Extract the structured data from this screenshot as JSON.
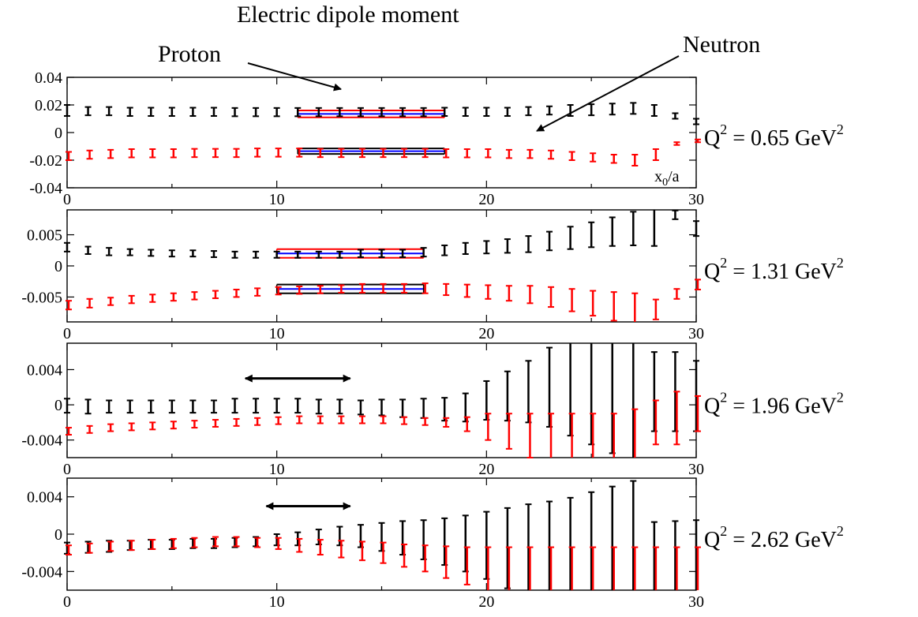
{
  "title": "Electric dipole moment",
  "annotations": {
    "proton": "Proton",
    "neutron": "Neutron"
  },
  "colors": {
    "neutron": "#000000",
    "proton": "#ff0000",
    "fit_band_center": "#0000ff"
  },
  "chart_data": [
    {
      "type": "scatter",
      "q2_label": {
        "base": "Q",
        "exp": "2",
        "mid": " = 0.65 GeV",
        "unit_exp": "2"
      },
      "xlabel": "x",
      "xlabel_sub": "0",
      "xlabel_tail": "/a",
      "xlim": [
        0,
        30
      ],
      "ylim": [
        -0.04,
        0.04
      ],
      "x_ticks": [
        "0",
        "10",
        "20",
        "30"
      ],
      "y_ticks": [
        {
          "v": 0.04,
          "t": "0.04"
        },
        {
          "v": 0.02,
          "t": "0.02"
        },
        {
          "v": 0,
          "t": "0"
        },
        {
          "v": -0.02,
          "t": "-0.02"
        },
        {
          "v": -0.04,
          "t": "-0.04"
        }
      ],
      "series": [
        {
          "color": "#000000",
          "x": [
            0,
            1,
            2,
            3,
            4,
            5,
            6,
            7,
            8,
            9,
            10,
            11,
            12,
            13,
            14,
            15,
            16,
            17,
            18,
            19,
            20,
            21,
            22,
            23,
            24,
            25,
            26,
            27,
            28,
            29,
            30
          ],
          "y": [
            0.016,
            0.0155,
            0.0155,
            0.015,
            0.015,
            0.015,
            0.015,
            0.015,
            0.0148,
            0.0148,
            0.0148,
            0.0148,
            0.0148,
            0.0148,
            0.0148,
            0.0148,
            0.0148,
            0.0148,
            0.015,
            0.015,
            0.015,
            0.015,
            0.0155,
            0.016,
            0.016,
            0.0165,
            0.017,
            0.0175,
            0.016,
            0.012,
            0.008
          ],
          "err": [
            0.004,
            0.003,
            0.003,
            0.003,
            0.003,
            0.003,
            0.003,
            0.003,
            0.003,
            0.003,
            0.003,
            0.003,
            0.003,
            0.003,
            0.003,
            0.003,
            0.003,
            0.003,
            0.003,
            0.003,
            0.003,
            0.003,
            0.003,
            0.003,
            0.004,
            0.004,
            0.004,
            0.004,
            0.004,
            0.002,
            0.002
          ]
        },
        {
          "color": "#ff0000",
          "x": [
            0,
            1,
            2,
            3,
            4,
            5,
            6,
            7,
            8,
            9,
            10,
            11,
            12,
            13,
            14,
            15,
            16,
            17,
            18,
            19,
            20,
            21,
            22,
            23,
            24,
            25,
            26,
            27,
            28,
            29,
            30
          ],
          "y": [
            -0.017,
            -0.016,
            -0.0155,
            -0.015,
            -0.015,
            -0.015,
            -0.0148,
            -0.0148,
            -0.0148,
            -0.0145,
            -0.0145,
            -0.0145,
            -0.0148,
            -0.0148,
            -0.0148,
            -0.0148,
            -0.0148,
            -0.0148,
            -0.015,
            -0.015,
            -0.015,
            -0.0155,
            -0.0155,
            -0.016,
            -0.017,
            -0.018,
            -0.019,
            -0.02,
            -0.016,
            -0.008,
            -0.006
          ],
          "err": [
            0.003,
            0.003,
            0.003,
            0.003,
            0.003,
            0.003,
            0.003,
            0.003,
            0.003,
            0.003,
            0.003,
            0.003,
            0.003,
            0.003,
            0.003,
            0.003,
            0.003,
            0.003,
            0.003,
            0.003,
            0.003,
            0.003,
            0.003,
            0.003,
            0.003,
            0.003,
            0.003,
            0.004,
            0.004,
            0.001,
            0.001
          ]
        }
      ],
      "bands": [
        {
          "x": [
            11,
            18
          ],
          "center": 0.0135,
          "half": 0.0025,
          "edge_color": "#ff0000"
        },
        {
          "x": [
            11,
            18
          ],
          "center": -0.0135,
          "half": 0.002,
          "edge_color": "#000000"
        }
      ],
      "arrow": null
    },
    {
      "type": "scatter",
      "q2_label": {
        "base": "Q",
        "exp": "2",
        "mid": " = 1.31 GeV",
        "unit_exp": "2"
      },
      "xlim": [
        0,
        30
      ],
      "ylim": [
        -0.009,
        0.009
      ],
      "x_ticks": [
        "0",
        "10",
        "20",
        "30"
      ],
      "y_ticks": [
        {
          "v": 0.005,
          "t": "0.005"
        },
        {
          "v": 0,
          "t": "0"
        },
        {
          "v": -0.005,
          "t": "-0.005"
        }
      ],
      "series": [
        {
          "color": "#000000",
          "x": [
            0,
            1,
            2,
            3,
            4,
            5,
            6,
            7,
            8,
            9,
            10,
            11,
            12,
            13,
            14,
            15,
            16,
            17,
            18,
            19,
            20,
            21,
            22,
            23,
            24,
            25,
            26,
            27,
            28,
            29,
            30
          ],
          "y": [
            0.003,
            0.0025,
            0.0023,
            0.0022,
            0.0021,
            0.002,
            0.002,
            0.0019,
            0.0018,
            0.0018,
            0.0018,
            0.0018,
            0.0018,
            0.0018,
            0.002,
            0.002,
            0.002,
            0.0022,
            0.0025,
            0.0028,
            0.003,
            0.0032,
            0.0035,
            0.004,
            0.0045,
            0.005,
            0.0055,
            0.006,
            0.0062,
            0.0082,
            0.006
          ],
          "err": [
            0.0007,
            0.0006,
            0.0006,
            0.0005,
            0.0005,
            0.0005,
            0.0005,
            0.0005,
            0.0005,
            0.0005,
            0.0005,
            0.0005,
            0.0005,
            0.0005,
            0.0006,
            0.0006,
            0.0006,
            0.0007,
            0.0008,
            0.0009,
            0.001,
            0.0011,
            0.0013,
            0.0015,
            0.0018,
            0.002,
            0.0023,
            0.0027,
            0.003,
            0.0007,
            0.0012
          ]
        },
        {
          "color": "#ff0000",
          "x": [
            0,
            1,
            2,
            3,
            4,
            5,
            6,
            7,
            8,
            9,
            10,
            11,
            12,
            13,
            14,
            15,
            16,
            17,
            18,
            19,
            20,
            21,
            22,
            23,
            24,
            25,
            26,
            27,
            28,
            29,
            30
          ],
          "y": [
            -0.0063,
            -0.006,
            -0.0057,
            -0.0054,
            -0.0052,
            -0.005,
            -0.0048,
            -0.0046,
            -0.0044,
            -0.0042,
            -0.004,
            -0.0039,
            -0.0038,
            -0.0037,
            -0.0036,
            -0.0036,
            -0.0036,
            -0.0036,
            -0.0038,
            -0.004,
            -0.0042,
            -0.0044,
            -0.0046,
            -0.005,
            -0.0055,
            -0.006,
            -0.0065,
            -0.007,
            -0.007,
            -0.0045,
            -0.003
          ],
          "err": [
            0.0007,
            0.0007,
            0.0006,
            0.0006,
            0.0006,
            0.0006,
            0.0006,
            0.0006,
            0.0006,
            0.0006,
            0.0006,
            0.0006,
            0.0006,
            0.0006,
            0.0007,
            0.0007,
            0.0007,
            0.0008,
            0.0009,
            0.001,
            0.0011,
            0.0012,
            0.0014,
            0.0016,
            0.0018,
            0.002,
            0.0023,
            0.0026,
            0.0016,
            0.0008,
            0.0008
          ]
        }
      ],
      "bands": [
        {
          "x": [
            10,
            17
          ],
          "center": 0.002,
          "half": 0.0007,
          "edge_color": "#ff0000"
        },
        {
          "x": [
            10,
            17
          ],
          "center": -0.0037,
          "half": 0.0007,
          "edge_color": "#000000"
        }
      ],
      "arrow": null
    },
    {
      "type": "scatter",
      "q2_label": {
        "base": "Q",
        "exp": "2",
        "mid": " = 1.96 GeV",
        "unit_exp": "2"
      },
      "xlim": [
        0,
        30
      ],
      "ylim": [
        -0.006,
        0.007
      ],
      "x_ticks": [
        "0",
        "10",
        "20",
        "30"
      ],
      "y_ticks": [
        {
          "v": 0.004,
          "t": "0.004"
        },
        {
          "v": 0,
          "t": "0"
        },
        {
          "v": -0.004,
          "t": "-0.004"
        }
      ],
      "series": [
        {
          "color": "#000000",
          "x": [
            0,
            1,
            2,
            3,
            4,
            5,
            6,
            7,
            8,
            9,
            10,
            11,
            12,
            13,
            14,
            15,
            16,
            17,
            18,
            19,
            20,
            21,
            22,
            23,
            24,
            25,
            26,
            27,
            28,
            29,
            30
          ],
          "y": [
            -0.0001,
            -0.0002,
            -0.0002,
            -0.0002,
            -0.0002,
            -0.0002,
            -0.0002,
            -0.0002,
            -0.0001,
            -0.0001,
            -0.0001,
            -0.0001,
            -0.0002,
            -0.0002,
            -0.0003,
            -0.0003,
            -0.0004,
            -0.0004,
            -0.0005,
            -0.0003,
            0.0005,
            0.001,
            0.0015,
            0.002,
            0.002,
            0.002,
            0.002,
            0.002,
            0.0015,
            0.0015,
            0.001
          ],
          "err": [
            0.0008,
            0.0008,
            0.0007,
            0.0007,
            0.0007,
            0.0007,
            0.0007,
            0.0007,
            0.0008,
            0.0008,
            0.0008,
            0.0008,
            0.0008,
            0.0008,
            0.0008,
            0.0009,
            0.001,
            0.0011,
            0.0013,
            0.0016,
            0.0022,
            0.0028,
            0.0035,
            0.0045,
            0.0055,
            0.0065,
            0.0075,
            0.0085,
            0.0045,
            0.0045,
            0.004
          ]
        },
        {
          "color": "#ff0000",
          "x": [
            0,
            1,
            2,
            3,
            4,
            5,
            6,
            7,
            8,
            9,
            10,
            11,
            12,
            13,
            14,
            15,
            16,
            17,
            18,
            19,
            20,
            21,
            22,
            23,
            24,
            25,
            26,
            27,
            28,
            29,
            30
          ],
          "y": [
            -0.003,
            -0.0028,
            -0.0026,
            -0.0025,
            -0.0024,
            -0.0023,
            -0.0022,
            -0.0021,
            -0.002,
            -0.0019,
            -0.0018,
            -0.0017,
            -0.0017,
            -0.0017,
            -0.0017,
            -0.0017,
            -0.0018,
            -0.0019,
            -0.002,
            -0.0022,
            -0.0025,
            -0.003,
            -0.0035,
            -0.004,
            -0.0045,
            -0.005,
            -0.0055,
            -0.005,
            -0.002,
            -0.0015,
            -0.001
          ],
          "err": [
            0.0004,
            0.0004,
            0.0004,
            0.0004,
            0.0004,
            0.0004,
            0.0004,
            0.0004,
            0.0004,
            0.0004,
            0.0004,
            0.0004,
            0.0004,
            0.0004,
            0.0004,
            0.0004,
            0.0004,
            0.0004,
            0.0005,
            0.0008,
            0.0015,
            0.002,
            0.0025,
            0.003,
            0.0035,
            0.004,
            0.0045,
            0.0045,
            0.0025,
            0.003,
            0.002
          ]
        }
      ],
      "bands": [],
      "arrow": {
        "x": [
          8.5,
          13.5
        ],
        "y": 0.003
      }
    },
    {
      "type": "scatter",
      "q2_label": {
        "base": "Q",
        "exp": "2",
        "mid": " = 2.62 GeV",
        "unit_exp": "2"
      },
      "xlim": [
        0,
        30
      ],
      "ylim": [
        -0.006,
        0.006
      ],
      "x_ticks": [
        "0",
        "10",
        "20",
        "30"
      ],
      "y_ticks": [
        {
          "v": 0.004,
          "t": "0.004"
        },
        {
          "v": 0,
          "t": "0"
        },
        {
          "v": -0.004,
          "t": "-0.004"
        }
      ],
      "series": [
        {
          "color": "#000000",
          "x": [
            0,
            1,
            2,
            3,
            4,
            5,
            6,
            7,
            8,
            9,
            10,
            11,
            12,
            13,
            14,
            15,
            16,
            17,
            18,
            19,
            20,
            21,
            22,
            23,
            24,
            25,
            26,
            27,
            28,
            29,
            30
          ],
          "y": [
            -0.0015,
            -0.0014,
            -0.0013,
            -0.0012,
            -0.0011,
            -0.0011,
            -0.001,
            -0.001,
            -0.0009,
            -0.0008,
            -0.0006,
            -0.0005,
            -0.0003,
            -0.0002,
            -0.0002,
            -0.0003,
            -0.0004,
            -0.0006,
            -0.0008,
            -0.001,
            -0.0012,
            -0.0015,
            -0.0018,
            -0.0022,
            -0.0026,
            -0.003,
            -0.0034,
            -0.0038,
            -0.0042,
            -0.0046,
            -0.005
          ],
          "err": [
            0.0006,
            0.0006,
            0.0006,
            0.0005,
            0.0005,
            0.0005,
            0.0005,
            0.0005,
            0.0005,
            0.0005,
            0.0006,
            0.0007,
            0.0008,
            0.001,
            0.0012,
            0.0015,
            0.0018,
            0.0021,
            0.0025,
            0.003,
            0.0036,
            0.0043,
            0.005,
            0.0057,
            0.0065,
            0.0075,
            0.0085,
            0.0095,
            0.0055,
            0.006,
            0.0065
          ]
        },
        {
          "color": "#ff0000",
          "x": [
            0,
            1,
            2,
            3,
            4,
            5,
            6,
            7,
            8,
            9,
            10,
            11,
            12,
            13,
            14,
            15,
            16,
            17,
            18,
            19,
            20,
            21,
            22,
            23,
            24,
            25,
            26,
            27,
            28,
            29,
            30
          ],
          "y": [
            -0.0017,
            -0.0015,
            -0.0013,
            -0.0012,
            -0.0011,
            -0.001,
            -0.0009,
            -0.0008,
            -0.0008,
            -0.0009,
            -0.001,
            -0.0012,
            -0.0014,
            -0.0016,
            -0.0018,
            -0.002,
            -0.0023,
            -0.0026,
            -0.003,
            -0.0034,
            -0.0038,
            -0.0042,
            -0.0046,
            -0.005,
            -0.0054,
            -0.0058,
            -0.0062,
            -0.0066,
            -0.007,
            -0.0074,
            -0.0078
          ],
          "err": [
            0.0005,
            0.0005,
            0.0005,
            0.0005,
            0.0005,
            0.0005,
            0.0005,
            0.0005,
            0.0005,
            0.0005,
            0.0006,
            0.0007,
            0.0008,
            0.0009,
            0.001,
            0.0011,
            0.0012,
            0.0014,
            0.0017,
            0.002,
            0.0024,
            0.0028,
            0.0032,
            0.0036,
            0.004,
            0.0044,
            0.0048,
            0.0052,
            0.0056,
            0.006,
            0.0064
          ]
        }
      ],
      "bands": [],
      "arrow": {
        "x": [
          9.5,
          13.5
        ],
        "y": 0.003
      }
    }
  ]
}
